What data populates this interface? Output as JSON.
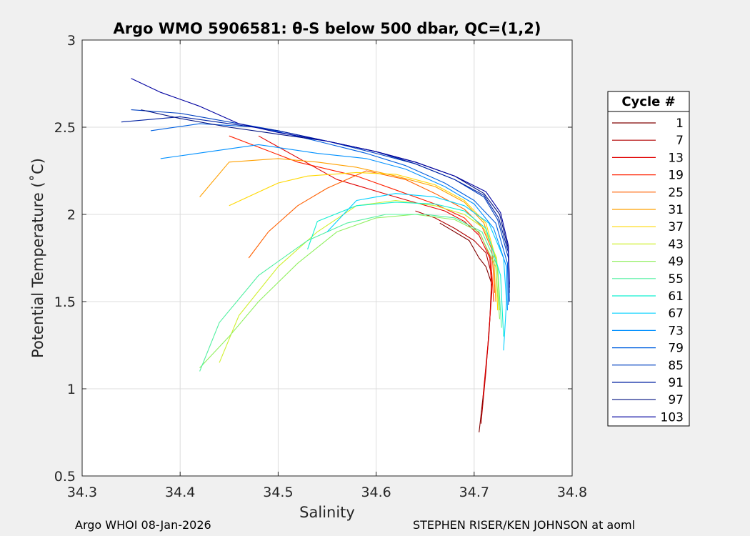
{
  "chart_data": {
    "type": "line",
    "title": "Argo WMO 5906581: θ-S below 500 dbar,  QC=(1,2)",
    "xlabel": "Salinity",
    "ylabel": "Potential Temperature (˚C)",
    "xlim": [
      34.3,
      34.8
    ],
    "ylim": [
      0.5,
      3
    ],
    "xticks": [
      "34.3",
      "34.4",
      "34.5",
      "34.6",
      "34.7",
      "34.8"
    ],
    "yticks": [
      "0.5",
      "1",
      "1.5",
      "2",
      "2.5",
      "3"
    ],
    "grid": true,
    "legend": {
      "title": "Cycle #",
      "placement": "right",
      "entries": [
        "1",
        "7",
        "13",
        "19",
        "25",
        "31",
        "37",
        "43",
        "49",
        "55",
        "61",
        "67",
        "73",
        "79",
        "85",
        "91",
        "97",
        "103"
      ],
      "colors": [
        "#800000",
        "#b00000",
        "#e00000",
        "#ff2000",
        "#ff6000",
        "#ffa000",
        "#ffd800",
        "#d0f030",
        "#90f060",
        "#50f0a0",
        "#10f0d0",
        "#00d0ff",
        "#0090ff",
        "#0060e0",
        "#0040c0",
        "#0020a0",
        "#001080",
        "#0000a0"
      ]
    },
    "series": [
      {
        "name": "1",
        "color": "#800000",
        "points": [
          [
            34.705,
            0.75
          ],
          [
            34.71,
            1.0
          ],
          [
            34.715,
            1.3
          ],
          [
            34.718,
            1.6
          ],
          [
            34.712,
            1.7
          ],
          [
            34.705,
            1.75
          ],
          [
            34.695,
            1.85
          ],
          [
            34.68,
            1.9
          ],
          [
            34.665,
            1.95
          ]
        ]
      },
      {
        "name": "7",
        "color": "#b00000",
        "points": [
          [
            34.707,
            0.8
          ],
          [
            34.712,
            1.1
          ],
          [
            34.716,
            1.4
          ],
          [
            34.718,
            1.65
          ],
          [
            34.712,
            1.78
          ],
          [
            34.7,
            1.85
          ],
          [
            34.68,
            1.92
          ],
          [
            34.66,
            1.98
          ],
          [
            34.64,
            2.02
          ]
        ]
      },
      {
        "name": "13",
        "color": "#e00000",
        "points": [
          [
            34.709,
            0.95
          ],
          [
            34.714,
            1.25
          ],
          [
            34.718,
            1.55
          ],
          [
            34.716,
            1.75
          ],
          [
            34.705,
            1.88
          ],
          [
            34.69,
            1.96
          ],
          [
            34.67,
            2.02
          ],
          [
            34.62,
            2.1
          ],
          [
            34.56,
            2.2
          ],
          [
            34.48,
            2.45
          ]
        ]
      },
      {
        "name": "19",
        "color": "#ff2000",
        "points": [
          [
            34.72,
            1.5
          ],
          [
            34.717,
            1.75
          ],
          [
            34.707,
            1.88
          ],
          [
            34.69,
            1.98
          ],
          [
            34.66,
            2.06
          ],
          [
            34.62,
            2.14
          ],
          [
            34.58,
            2.22
          ],
          [
            34.52,
            2.3
          ],
          [
            34.45,
            2.45
          ]
        ]
      },
      {
        "name": "25",
        "color": "#ff6000",
        "points": [
          [
            34.721,
            1.55
          ],
          [
            34.718,
            1.8
          ],
          [
            34.708,
            1.93
          ],
          [
            34.69,
            2.03
          ],
          [
            34.66,
            2.12
          ],
          [
            34.63,
            2.2
          ],
          [
            34.59,
            2.25
          ],
          [
            34.55,
            2.15
          ],
          [
            34.52,
            2.05
          ],
          [
            34.49,
            1.9
          ],
          [
            34.47,
            1.75
          ]
        ]
      },
      {
        "name": "31",
        "color": "#ffa000",
        "points": [
          [
            34.722,
            1.5
          ],
          [
            34.72,
            1.78
          ],
          [
            34.71,
            1.95
          ],
          [
            34.69,
            2.07
          ],
          [
            34.66,
            2.16
          ],
          [
            34.62,
            2.22
          ],
          [
            34.58,
            2.27
          ],
          [
            34.54,
            2.3
          ],
          [
            34.5,
            2.32
          ],
          [
            34.45,
            2.3
          ],
          [
            34.42,
            2.1
          ]
        ]
      },
      {
        "name": "37",
        "color": "#ffd800",
        "points": [
          [
            34.724,
            1.45
          ],
          [
            34.722,
            1.75
          ],
          [
            34.712,
            1.95
          ],
          [
            34.69,
            2.08
          ],
          [
            34.66,
            2.17
          ],
          [
            34.62,
            2.23
          ],
          [
            34.58,
            2.24
          ],
          [
            34.53,
            2.22
          ],
          [
            34.5,
            2.18
          ],
          [
            34.45,
            2.05
          ]
        ]
      },
      {
        "name": "43",
        "color": "#d0f030",
        "points": [
          [
            34.726,
            1.45
          ],
          [
            34.723,
            1.75
          ],
          [
            34.71,
            1.92
          ],
          [
            34.69,
            2.0
          ],
          [
            34.66,
            2.05
          ],
          [
            34.62,
            2.08
          ],
          [
            34.58,
            2.05
          ],
          [
            34.54,
            1.9
          ],
          [
            34.5,
            1.7
          ],
          [
            34.46,
            1.42
          ],
          [
            34.44,
            1.15
          ]
        ]
      },
      {
        "name": "49",
        "color": "#90f060",
        "points": [
          [
            34.726,
            1.4
          ],
          [
            34.722,
            1.7
          ],
          [
            34.705,
            1.9
          ],
          [
            34.68,
            1.97
          ],
          [
            34.64,
            2.0
          ],
          [
            34.6,
            1.98
          ],
          [
            34.56,
            1.9
          ],
          [
            34.52,
            1.72
          ],
          [
            34.48,
            1.5
          ],
          [
            34.45,
            1.3
          ],
          [
            34.42,
            1.12
          ]
        ]
      },
      {
        "name": "55",
        "color": "#50f0a0",
        "points": [
          [
            34.728,
            1.35
          ],
          [
            34.724,
            1.7
          ],
          [
            34.708,
            1.9
          ],
          [
            34.68,
            1.98
          ],
          [
            34.65,
            2.0
          ],
          [
            34.61,
            2.0
          ],
          [
            34.57,
            1.95
          ],
          [
            34.53,
            1.85
          ],
          [
            34.48,
            1.65
          ],
          [
            34.44,
            1.38
          ],
          [
            34.42,
            1.1
          ]
        ]
      },
      {
        "name": "61",
        "color": "#10f0d0",
        "points": [
          [
            34.73,
            1.3
          ],
          [
            34.727,
            1.65
          ],
          [
            34.712,
            1.92
          ],
          [
            34.69,
            2.02
          ],
          [
            34.66,
            2.06
          ],
          [
            34.62,
            2.07
          ],
          [
            34.58,
            2.05
          ],
          [
            34.54,
            1.96
          ],
          [
            34.53,
            1.8
          ]
        ]
      },
      {
        "name": "67",
        "color": "#00d0ff",
        "points": [
          [
            34.73,
            1.22
          ],
          [
            34.733,
            1.5
          ],
          [
            34.73,
            1.75
          ],
          [
            34.715,
            1.95
          ],
          [
            34.69,
            2.05
          ],
          [
            34.66,
            2.1
          ],
          [
            34.62,
            2.12
          ],
          [
            34.58,
            2.08
          ],
          [
            34.55,
            1.9
          ]
        ]
      },
      {
        "name": "73",
        "color": "#0090ff",
        "points": [
          [
            34.734,
            1.45
          ],
          [
            34.733,
            1.7
          ],
          [
            34.72,
            1.92
          ],
          [
            34.7,
            2.06
          ],
          [
            34.67,
            2.16
          ],
          [
            34.63,
            2.26
          ],
          [
            34.59,
            2.32
          ],
          [
            34.54,
            2.35
          ],
          [
            34.48,
            2.4
          ],
          [
            34.43,
            2.36
          ],
          [
            34.38,
            2.32
          ]
        ]
      },
      {
        "name": "79",
        "color": "#0060e0",
        "points": [
          [
            34.735,
            1.48
          ],
          [
            34.734,
            1.72
          ],
          [
            34.722,
            1.95
          ],
          [
            34.7,
            2.08
          ],
          [
            34.67,
            2.18
          ],
          [
            34.63,
            2.28
          ],
          [
            34.59,
            2.35
          ],
          [
            34.54,
            2.42
          ],
          [
            34.48,
            2.5
          ],
          [
            34.42,
            2.52
          ],
          [
            34.37,
            2.48
          ]
        ]
      },
      {
        "name": "85",
        "color": "#0040c0",
        "points": [
          [
            34.736,
            1.5
          ],
          [
            34.735,
            1.75
          ],
          [
            34.724,
            1.97
          ],
          [
            34.71,
            2.1
          ],
          [
            34.68,
            2.2
          ],
          [
            34.64,
            2.29
          ],
          [
            34.6,
            2.35
          ],
          [
            34.55,
            2.42
          ],
          [
            34.5,
            2.48
          ],
          [
            34.45,
            2.53
          ],
          [
            34.4,
            2.58
          ],
          [
            34.35,
            2.6
          ]
        ]
      },
      {
        "name": "91",
        "color": "#0020a0",
        "points": [
          [
            34.736,
            1.55
          ],
          [
            34.735,
            1.78
          ],
          [
            34.725,
            1.98
          ],
          [
            34.71,
            2.11
          ],
          [
            34.68,
            2.2
          ],
          [
            34.64,
            2.29
          ],
          [
            34.6,
            2.36
          ],
          [
            34.55,
            2.42
          ],
          [
            34.5,
            2.48
          ],
          [
            34.45,
            2.52
          ],
          [
            34.4,
            2.56
          ],
          [
            34.34,
            2.53
          ]
        ]
      },
      {
        "name": "97",
        "color": "#001080",
        "points": [
          [
            34.736,
            1.58
          ],
          [
            34.735,
            1.8
          ],
          [
            34.726,
            2.0
          ],
          [
            34.71,
            2.12
          ],
          [
            34.68,
            2.22
          ],
          [
            34.64,
            2.3
          ],
          [
            34.6,
            2.36
          ],
          [
            34.55,
            2.42
          ],
          [
            34.5,
            2.46
          ],
          [
            34.45,
            2.5
          ],
          [
            34.4,
            2.55
          ],
          [
            34.36,
            2.6
          ]
        ]
      },
      {
        "name": "103",
        "color": "#0000a0",
        "points": [
          [
            34.736,
            1.6
          ],
          [
            34.735,
            1.82
          ],
          [
            34.727,
            2.01
          ],
          [
            34.712,
            2.13
          ],
          [
            34.68,
            2.22
          ],
          [
            34.64,
            2.3
          ],
          [
            34.6,
            2.36
          ],
          [
            34.55,
            2.42
          ],
          [
            34.5,
            2.47
          ],
          [
            34.46,
            2.52
          ],
          [
            34.42,
            2.62
          ],
          [
            34.38,
            2.7
          ],
          [
            34.35,
            2.78
          ]
        ]
      }
    ]
  },
  "footer": {
    "left": "Argo WHOI 08-Jan-2026",
    "right": "STEPHEN RISER/KEN JOHNSON at aoml"
  }
}
